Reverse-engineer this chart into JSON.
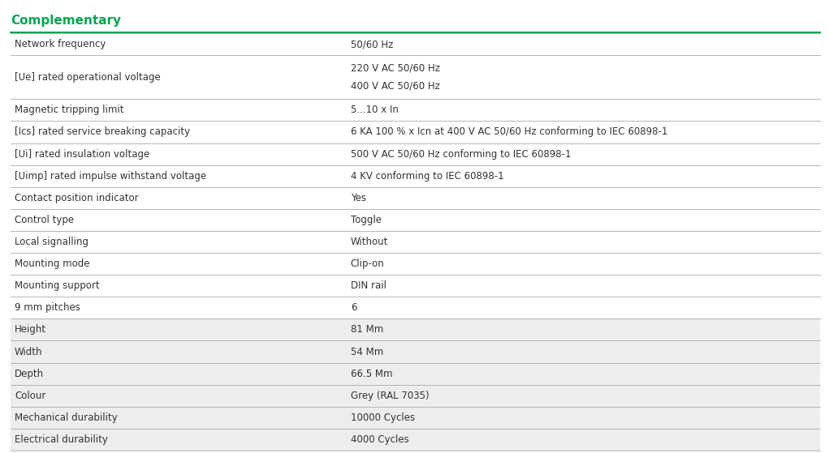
{
  "title": "Complementary",
  "title_color": "#00A651",
  "background_color": "#FFFFFF",
  "header_line_color": "#00A651",
  "row_line_color": "#AAAAAA",
  "label_color": "#333333",
  "value_color": "#333333",
  "font_size": 8.5,
  "title_font_size": 11,
  "col_split": 0.415,
  "shaded_color": "#EDEDEE",
  "rows": [
    {
      "label": "Network frequency",
      "value": "50/60 Hz",
      "multiline": false,
      "shaded": false
    },
    {
      "label": "[Ue] rated operational voltage",
      "value": "220 V AC 50/60 Hz\n400 V AC 50/60 Hz",
      "multiline": true,
      "shaded": false
    },
    {
      "label": "Magnetic tripping limit",
      "value": "5...10 x In",
      "multiline": false,
      "shaded": false
    },
    {
      "label": "[Ics] rated service breaking capacity",
      "value": "6 KA 100 % x Icn at 400 V AC 50/60 Hz conforming to IEC 60898-1",
      "multiline": false,
      "shaded": false
    },
    {
      "label": "[Ui] rated insulation voltage",
      "value": "500 V AC 50/60 Hz conforming to IEC 60898-1",
      "multiline": false,
      "shaded": false
    },
    {
      "label": "[Uimp] rated impulse withstand voltage",
      "value": "4 KV conforming to IEC 60898-1",
      "multiline": false,
      "shaded": false
    },
    {
      "label": "Contact position indicator",
      "value": "Yes",
      "multiline": false,
      "shaded": false
    },
    {
      "label": "Control type",
      "value": "Toggle",
      "multiline": false,
      "shaded": false
    },
    {
      "label": "Local signalling",
      "value": "Without",
      "multiline": false,
      "shaded": false
    },
    {
      "label": "Mounting mode",
      "value": "Clip-on",
      "multiline": false,
      "shaded": false
    },
    {
      "label": "Mounting support",
      "value": "DIN rail",
      "multiline": false,
      "shaded": false
    },
    {
      "label": "9 mm pitches",
      "value": "6",
      "multiline": false,
      "shaded": false
    },
    {
      "label": "Height",
      "value": "81 Mm",
      "multiline": false,
      "shaded": true
    },
    {
      "label": "Width",
      "value": "54 Mm",
      "multiline": false,
      "shaded": true
    },
    {
      "label": "Depth",
      "value": "66.5 Mm",
      "multiline": false,
      "shaded": true
    },
    {
      "label": "Colour",
      "value": "Grey (RAL 7035)",
      "multiline": false,
      "shaded": true
    },
    {
      "label": "Mechanical durability",
      "value": "10000 Cycles",
      "multiline": false,
      "shaded": true
    },
    {
      "label": "Electrical durability",
      "value": "4000 Cycles",
      "multiline": false,
      "shaded": true
    }
  ]
}
